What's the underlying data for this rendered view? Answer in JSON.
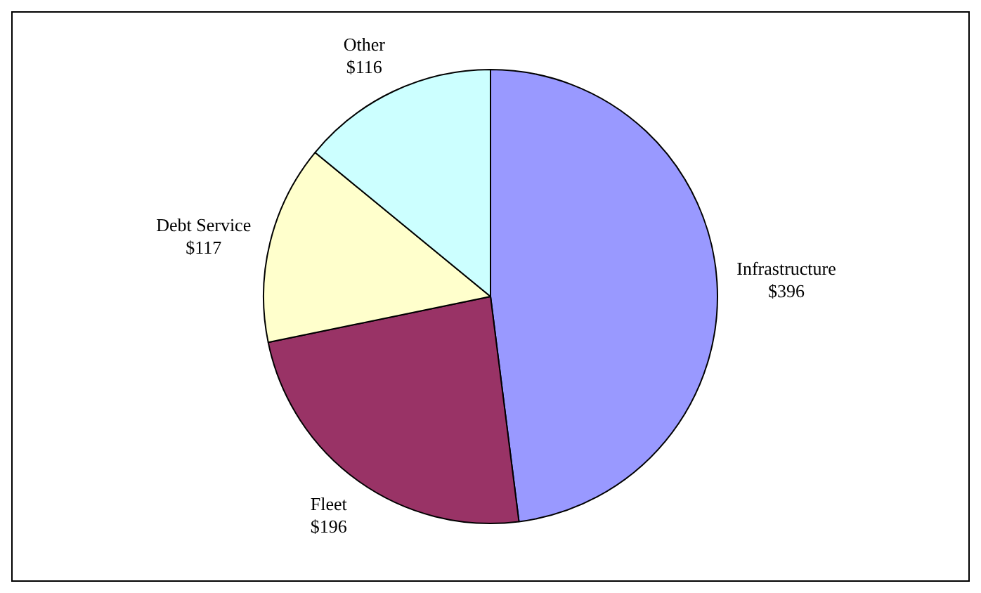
{
  "chart_data": {
    "type": "pie",
    "categories": [
      "Infrastructure",
      "Fleet",
      "Debt Service",
      "Other"
    ],
    "values": [
      396,
      196,
      117,
      116
    ],
    "colors": [
      "#9999ff",
      "#993366",
      "#ffffcc",
      "#ccffff"
    ],
    "value_labels": [
      "$396",
      "$196",
      "$117",
      "$116"
    ],
    "legend": false
  }
}
